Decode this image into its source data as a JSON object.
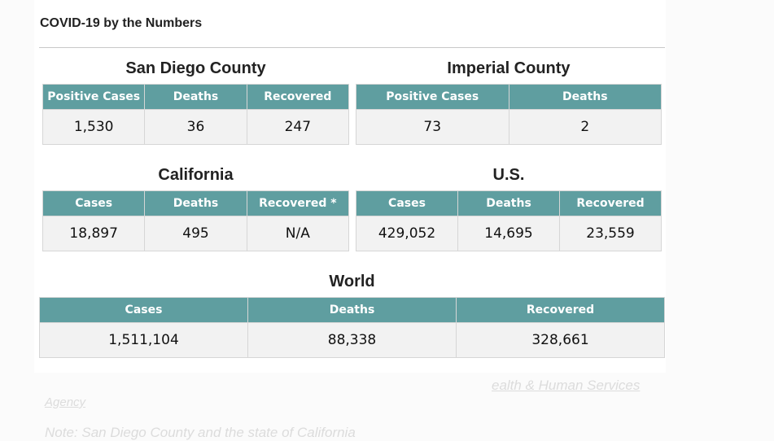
{
  "heading": "COVID-19 by the Numbers",
  "san_diego": {
    "title": "San Diego County",
    "headers": [
      "Positive Cases",
      "Deaths",
      "Recovered"
    ],
    "values": [
      "1,530",
      "36",
      "247"
    ]
  },
  "imperial": {
    "title": "Imperial County",
    "headers": [
      "Positive Cases",
      "Deaths"
    ],
    "values": [
      "73",
      "2"
    ]
  },
  "california": {
    "title": "California",
    "headers": [
      "Cases",
      "Deaths",
      "Recovered *"
    ],
    "values": [
      "18,897",
      "495",
      "N/A"
    ]
  },
  "us": {
    "title": "U.S.",
    "headers": [
      "Cases",
      "Deaths",
      "Recovered"
    ],
    "values": [
      "429,052",
      "14,695",
      "23,559"
    ]
  },
  "world": {
    "title": "World",
    "headers": [
      "Cases",
      "Deaths",
      "Recovered"
    ],
    "values": [
      "1,511,104",
      "88,338",
      "328,661"
    ]
  },
  "background_text": {
    "link_fragment": "ealth & Human Services",
    "agency": "Agency",
    "note": "Note: San Diego County and the state of California"
  },
  "colors": {
    "header_bg": "#5f9ea0",
    "cell_bg": "#f2f2f2"
  }
}
